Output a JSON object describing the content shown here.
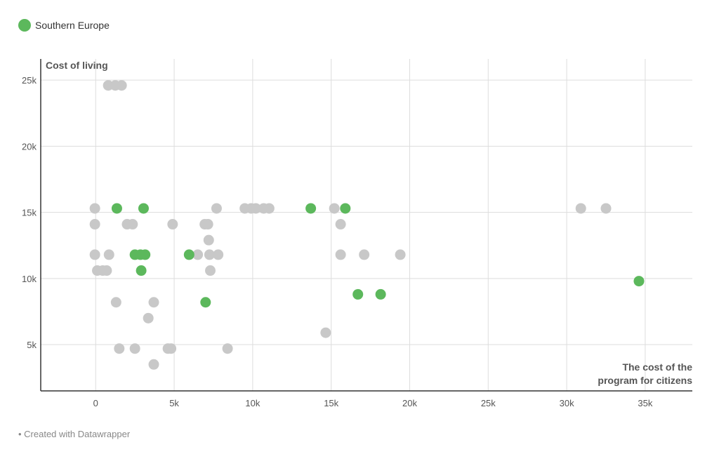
{
  "legend": {
    "label": "Southern Europe",
    "color": "#5cb85c"
  },
  "footer": {
    "text": "• Created with Datawrapper"
  },
  "colors": {
    "highlight": "#5cb85c",
    "other": "#c8c8c8",
    "grid": "#dddddd",
    "axis": "#333333"
  },
  "chart_data": {
    "type": "scatter",
    "ylabel": "Cost of living",
    "xlabel_lines": [
      "The cost of the",
      "program for citizens"
    ],
    "xlim": [
      -3500,
      38000
    ],
    "ylim": [
      1500,
      26600
    ],
    "x_ticks": [
      0,
      5000,
      10000,
      15000,
      20000,
      25000,
      30000,
      35000
    ],
    "x_tick_labels": [
      "0",
      "5k",
      "10k",
      "15k",
      "20k",
      "25k",
      "30k",
      "35k"
    ],
    "y_ticks": [
      5000,
      10000,
      15000,
      20000,
      25000
    ],
    "y_tick_labels": [
      "5k",
      "10k",
      "15k",
      "20k",
      "25k"
    ],
    "grid": true,
    "series": [
      {
        "name": "Southern Europe",
        "color": "#5cb85c",
        "points": [
          [
            1350,
            15300
          ],
          [
            3050,
            15300
          ],
          [
            13700,
            15300
          ],
          [
            15900,
            15300
          ],
          [
            2500,
            11800
          ],
          [
            2850,
            11800
          ],
          [
            3150,
            11800
          ],
          [
            5950,
            11800
          ],
          [
            2900,
            10600
          ],
          [
            7000,
            8200
          ],
          [
            16700,
            8800
          ],
          [
            18150,
            8800
          ],
          [
            34600,
            9800
          ]
        ]
      },
      {
        "color": "#c8c8c8",
        "points": [
          [
            800,
            24600
          ],
          [
            1250,
            24600
          ],
          [
            1650,
            24600
          ],
          [
            -50,
            15300
          ],
          [
            7700,
            15300
          ],
          [
            9500,
            15300
          ],
          [
            9900,
            15300
          ],
          [
            10200,
            15300
          ],
          [
            10700,
            15300
          ],
          [
            11050,
            15300
          ],
          [
            15200,
            15300
          ],
          [
            30900,
            15300
          ],
          [
            32500,
            15300
          ],
          [
            -50,
            14100
          ],
          [
            2000,
            14100
          ],
          [
            2350,
            14100
          ],
          [
            4900,
            14100
          ],
          [
            6950,
            14100
          ],
          [
            7150,
            14100
          ],
          [
            15600,
            14100
          ],
          [
            7200,
            12900
          ],
          [
            -50,
            11800
          ],
          [
            850,
            11800
          ],
          [
            6500,
            11800
          ],
          [
            7250,
            11800
          ],
          [
            7800,
            11800
          ],
          [
            15600,
            11800
          ],
          [
            17100,
            11800
          ],
          [
            19400,
            11800
          ],
          [
            100,
            10600
          ],
          [
            450,
            10600
          ],
          [
            700,
            10600
          ],
          [
            7300,
            10600
          ],
          [
            1300,
            8200
          ],
          [
            3700,
            8200
          ],
          [
            3350,
            7000
          ],
          [
            14650,
            5900
          ],
          [
            1500,
            4700
          ],
          [
            2500,
            4700
          ],
          [
            4600,
            4700
          ],
          [
            4800,
            4700
          ],
          [
            8400,
            4700
          ],
          [
            3700,
            3500
          ]
        ]
      }
    ]
  }
}
